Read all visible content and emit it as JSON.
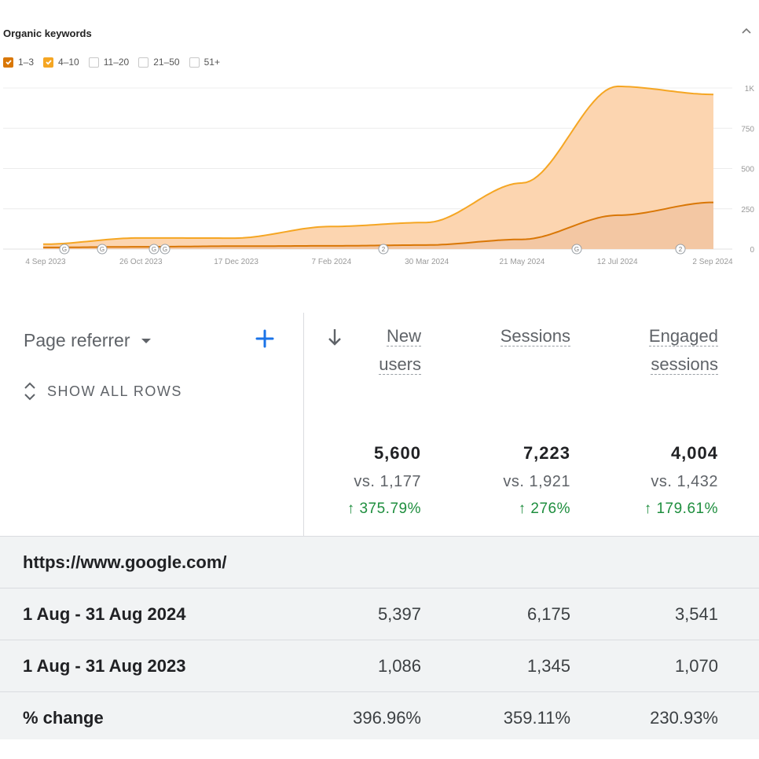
{
  "chart": {
    "title": "Organic keywords",
    "legend": [
      {
        "label": "1–3",
        "checked": true,
        "color": "#d97706"
      },
      {
        "label": "4–10",
        "checked": true,
        "color": "#f5a623"
      },
      {
        "label": "11–20",
        "checked": false
      },
      {
        "label": "21–50",
        "checked": false
      },
      {
        "label": "51+",
        "checked": false
      }
    ]
  },
  "chart_data": {
    "type": "area",
    "x": [
      "4 Sep 2023",
      "26 Oct 2023",
      "17 Dec 2023",
      "7 Feb 2024",
      "30 Mar 2024",
      "21 May 2024",
      "12 Jul 2024",
      "2 Sep 2024"
    ],
    "x_ticks": [
      "4 Sep 2023",
      "26 Oct 2023",
      "17 Dec 2023",
      "7 Feb 2024",
      "30 Mar 2024",
      "21 May 2024",
      "12 Jul 2024",
      "2 Sep 2024"
    ],
    "y_ticks": [
      "1K",
      "750",
      "500",
      "250",
      "0"
    ],
    "ylim": [
      0,
      1000
    ],
    "stacked": true,
    "series": [
      {
        "name": "1–3",
        "color": "#d97706",
        "values": [
          10,
          14,
          18,
          20,
          25,
          60,
          210,
          290
        ]
      },
      {
        "name": "4–10",
        "color": "#f5a623",
        "values": [
          20,
          55,
          50,
          120,
          140,
          350,
          800,
          670
        ]
      }
    ],
    "annotation_markers": [
      {
        "x": "4 Sep 2023",
        "label": "G"
      },
      {
        "x": "26 Oct 2023",
        "label": "G"
      },
      {
        "x": "17 Dec 2023",
        "label": "G"
      },
      {
        "x": "17 Dec 2023",
        "label": "G"
      },
      {
        "x": "30 Mar 2024",
        "label": "2"
      },
      {
        "x": "12 Jul 2024",
        "label": "G"
      },
      {
        "x": "2 Sep 2024",
        "label": "2"
      }
    ],
    "grid": true,
    "y_axis_position": "right"
  },
  "table": {
    "dimension_label": "Page referrer",
    "show_all_rows_label": "SHOW ALL ROWS",
    "columns": [
      {
        "line1": "New",
        "line2": "users",
        "total": "5,600",
        "vs": "vs. 1,177",
        "change": "375.79%"
      },
      {
        "line1": "Sessions",
        "line2": "",
        "total": "7,223",
        "vs": "vs. 1,921",
        "change": "276%"
      },
      {
        "line1": "Engaged",
        "line2": "sessions",
        "total": "4,004",
        "vs": "vs. 1,432",
        "change": "179.61%"
      }
    ],
    "rows": [
      {
        "label": "https://www.google.com/",
        "values": [
          "",
          "",
          ""
        ]
      },
      {
        "label": "1 Aug - 31 Aug 2024",
        "values": [
          "5,397",
          "6,175",
          "3,541"
        ]
      },
      {
        "label": "1 Aug - 31 Aug 2023",
        "values": [
          "1,086",
          "1,345",
          "1,070"
        ]
      },
      {
        "label": "% change",
        "values": [
          "396.96%",
          "359.11%",
          "230.93%"
        ]
      }
    ]
  }
}
